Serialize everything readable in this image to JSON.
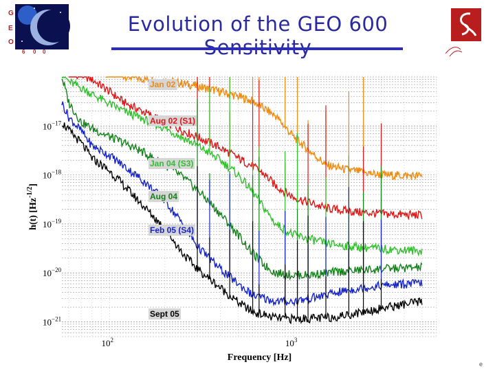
{
  "slide": {
    "title": "Evolution of the GEO 600 Sensitivity",
    "logo_left_text": [
      "G",
      "E",
      "O",
      "6",
      "0",
      "0"
    ],
    "footer_mark": "e"
  },
  "colors": {
    "title": "#2a2aa0",
    "rule": "#2b2bc0",
    "logo_red": "#b81e1e"
  },
  "chart_data": {
    "type": "line",
    "title": "",
    "xlabel": "Frequency [Hz]",
    "ylabel": "h(t) [Hz^-1/2]",
    "xscale": "log",
    "yscale": "log",
    "xlim": [
      55,
      6000
    ],
    "ylim": [
      5e-22,
      1e-16
    ],
    "grid": true,
    "x_ticks": [
      {
        "value": 100,
        "base": "10",
        "exp": "2"
      },
      {
        "value": 1000,
        "base": "10",
        "exp": "3"
      }
    ],
    "y_ticks": [
      {
        "value": 1e-17,
        "base": "10",
        "exp": "−17"
      },
      {
        "value": 1e-18,
        "base": "10",
        "exp": "−18"
      },
      {
        "value": 1e-19,
        "base": "10",
        "exp": "−19"
      },
      {
        "value": 1e-20,
        "base": "10",
        "exp": "−20"
      },
      {
        "value": 1e-21,
        "base": "10",
        "exp": "−21"
      }
    ],
    "legend_placement": "left column inside plot",
    "series": [
      {
        "name": "Jan 02",
        "color": "#f08a10",
        "x": [
          95,
          110,
          130,
          150,
          200,
          300,
          400,
          500,
          600,
          800,
          1000,
          1500,
          2000,
          3000,
          5000
        ],
        "y": [
          1.2e-16,
          1.1e-16,
          1e-16,
          9.2e-17,
          8.5e-17,
          6.5e-17,
          5e-17,
          4e-17,
          3.2e-17,
          1.6e-17,
          6e-18,
          1.6e-18,
          1.25e-18,
          1e-18,
          9.5e-19
        ]
      },
      {
        "name": "Aug 02 (S1)",
        "color": "#e01515",
        "x": [
          60,
          70,
          80,
          100,
          120,
          150,
          200,
          250,
          300,
          400,
          500,
          600,
          700,
          800,
          1000,
          1500,
          2000,
          3000,
          5000
        ],
        "y": [
          1.2e-16,
          1.1e-16,
          9e-17,
          5e-17,
          3e-17,
          2e-17,
          1.2e-17,
          8e-18,
          6e-18,
          3.6e-18,
          2.2e-18,
          1.5e-18,
          1e-18,
          6e-19,
          3.5e-19,
          2.1e-19,
          1.8e-19,
          1.6e-19,
          1.5e-19
        ]
      },
      {
        "name": "Jan 04 (S3)",
        "color": "#2fc02a",
        "x": [
          55,
          60,
          70,
          80,
          100,
          120,
          150,
          200,
          300,
          400,
          500,
          600,
          700,
          800,
          1000,
          1500,
          2000,
          3000,
          5000
        ],
        "y": [
          1.2e-16,
          8e-17,
          6e-17,
          4.5e-17,
          2.8e-17,
          2e-17,
          1.4e-17,
          9e-18,
          4e-18,
          2e-18,
          1e-18,
          4.5e-19,
          2e-19,
          1e-19,
          6e-20,
          4e-20,
          3.5e-20,
          3.1e-20,
          2.8e-20
        ]
      },
      {
        "name": "Aug 04",
        "color": "#13801a",
        "x": [
          55,
          60,
          70,
          80,
          100,
          120,
          150,
          200,
          250,
          300,
          400,
          500,
          600,
          700,
          800,
          1000,
          1200,
          1500,
          2000,
          3000,
          5000
        ],
        "y": [
          1e-16,
          3e-17,
          1.2e-17,
          9e-18,
          6e-18,
          4.5e-18,
          3e-18,
          1.6e-18,
          9e-19,
          5e-19,
          1.6e-19,
          6e-20,
          2.5e-20,
          1.4e-20,
          1e-20,
          9e-21,
          9e-21,
          1e-20,
          1.1e-20,
          1.2e-20,
          1.3e-20
        ]
      },
      {
        "name": "Feb 05 (S4)",
        "color": "#1523c8",
        "x": [
          55,
          60,
          70,
          80,
          100,
          120,
          150,
          200,
          250,
          300,
          400,
          500,
          600,
          800,
          1000,
          1500,
          2000,
          3000,
          5000
        ],
        "y": [
          3e-17,
          1.5e-17,
          8e-18,
          4e-18,
          2.5e-18,
          1.5e-18,
          8e-19,
          3e-19,
          1e-19,
          3.5e-20,
          1.2e-20,
          6e-21,
          3.5e-21,
          2.6e-21,
          2.6e-21,
          3.5e-21,
          4.5e-21,
          5.5e-21,
          6.2e-21
        ]
      },
      {
        "name": "Sept 05",
        "color": "#000000",
        "x": [
          55,
          60,
          70,
          80,
          100,
          120,
          150,
          200,
          250,
          300,
          400,
          500,
          600,
          800,
          1000,
          1500,
          2000,
          3000,
          5000
        ],
        "y": [
          1.2e-17,
          8e-18,
          4.5e-18,
          2.2e-18,
          1.2e-18,
          6e-19,
          2.5e-19,
          8e-20,
          2.5e-20,
          1.2e-20,
          5e-21,
          2.5e-21,
          1.6e-21,
          1.2e-21,
          1.15e-21,
          1.2e-21,
          1.4e-21,
          1.9e-21,
          2.6e-21
        ]
      }
    ]
  }
}
